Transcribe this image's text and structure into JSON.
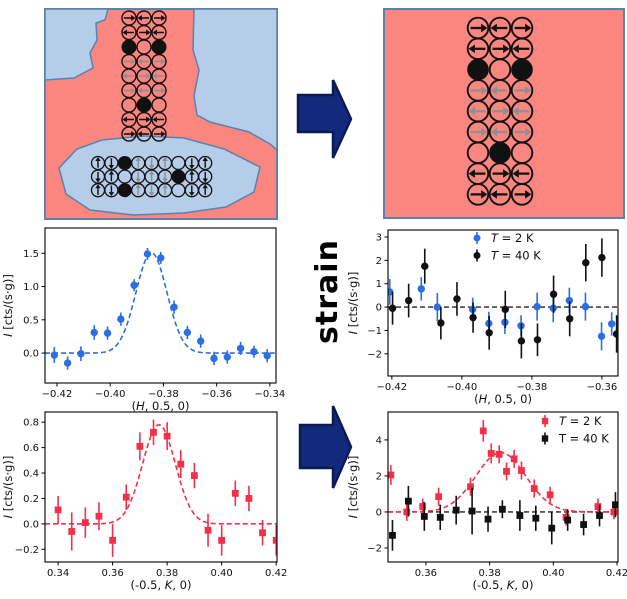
{
  "figure": {
    "strain_label": "strain"
  },
  "colors": {
    "salmon": "#fb8press",
    "salmon_fill": "#fb8680",
    "light_blue": "#b5cde8",
    "region_border": "#5a82ad",
    "arrow_navy": "#13297b",
    "arrow_navy_dark": "#0b1a52",
    "blue_marker": "#2b6fe2",
    "red_marker": "#f3304a",
    "black_marker": "#111111",
    "gray_arrow": "#8f8f8f",
    "spin_black": "#111111"
  },
  "diagrams": {
    "left": {
      "vertical_grid_pattern": [
        [
          "R",
          "L",
          "R"
        ],
        [
          "L",
          "R",
          "L"
        ],
        [
          "F",
          "O",
          "F"
        ],
        [
          "r",
          "l",
          "r"
        ],
        [
          "l",
          "r",
          "l"
        ],
        [
          "r",
          "l",
          "r"
        ],
        [
          "O",
          "F",
          "O"
        ],
        [
          "L",
          "R",
          "L"
        ],
        [
          "R",
          "L",
          "R"
        ]
      ],
      "horizontal_grid_pattern": [
        [
          "U",
          "D",
          "F",
          "u",
          "d",
          "u",
          "O",
          "D",
          "U"
        ],
        [
          "D",
          "U",
          "O",
          "d",
          "u",
          "d",
          "F",
          "U",
          "D"
        ],
        [
          "U",
          "D",
          "F",
          "u",
          "d",
          "u",
          "O",
          "D",
          "U"
        ]
      ]
    },
    "right": {
      "vertical_grid_pattern": [
        [
          "R",
          "L",
          "R"
        ],
        [
          "L",
          "R",
          "L"
        ],
        [
          "F",
          "O",
          "F"
        ],
        [
          "r",
          "l",
          "r"
        ],
        [
          "l",
          "r",
          "l"
        ],
        [
          "r",
          "l",
          "r"
        ],
        [
          "O",
          "F",
          "O"
        ],
        [
          "L",
          "R",
          "L"
        ],
        [
          "R",
          "L",
          "R"
        ]
      ]
    }
  },
  "chart_data": [
    {
      "id": "plot-mid-left",
      "type": "scatter",
      "xlabel": [
        {
          "t": "(",
          "i": false
        },
        {
          "t": "H",
          "i": true
        },
        {
          "t": ", 0.5, 0)",
          "i": false
        }
      ],
      "ylabel": [
        {
          "t": "I",
          "i": true
        },
        {
          "t": " [cts/(s·g)]",
          "i": false
        }
      ],
      "xlim": [
        -0.4245,
        -0.3377
      ],
      "ylim": [
        -0.45,
        1.88
      ],
      "xticks": [
        -0.42,
        -0.4,
        -0.38,
        -0.36,
        -0.34
      ],
      "xtick_labels": [
        "−0.42",
        "−0.40",
        "−0.38",
        "−0.36",
        "−0.34"
      ],
      "yticks": [
        0.0,
        0.5,
        1.0,
        1.5
      ],
      "ytick_labels": [
        "0.0",
        "0.5",
        "1.0",
        "1.5"
      ],
      "zero_line": false,
      "series": [
        {
          "name": "T = 2 K",
          "marker": "circle",
          "color_key": "blue_marker",
          "x": [
            -0.421,
            -0.416,
            -0.411,
            -0.406,
            -0.401,
            -0.396,
            -0.391,
            -0.386,
            -0.381,
            -0.376,
            -0.371,
            -0.366,
            -0.361,
            -0.356,
            -0.351,
            -0.346,
            -0.341
          ],
          "y": [
            -0.03,
            -0.15,
            -0.01,
            0.31,
            0.3,
            0.51,
            1.02,
            1.49,
            1.43,
            0.69,
            0.31,
            0.18,
            -0.08,
            -0.06,
            0.07,
            0.02,
            -0.04
          ],
          "yerr": [
            0.12,
            0.1,
            0.11,
            0.11,
            0.1,
            0.1,
            0.09,
            0.09,
            0.09,
            0.1,
            0.1,
            0.1,
            0.1,
            0.1,
            0.1,
            0.09,
            0.1
          ]
        }
      ],
      "fits": [
        {
          "color_key": "blue_marker",
          "gaussian": {
            "center": -0.3845,
            "amplitude": 1.51,
            "sigma": 0.0058,
            "baseline": 0.0
          }
        }
      ],
      "legend": null
    },
    {
      "id": "plot-mid-right",
      "type": "scatter",
      "xlabel": [
        {
          "t": "(",
          "i": false
        },
        {
          "t": "H",
          "i": true
        },
        {
          "t": ", 0.5, 0)",
          "i": false
        }
      ],
      "ylabel": [
        {
          "t": "I",
          "i": true
        },
        {
          "t": " [cts/(s·g)]",
          "i": false
        }
      ],
      "xlim": [
        -0.4211,
        -0.3554
      ],
      "ylim": [
        -2.95,
        3.3
      ],
      "xticks": [
        -0.42,
        -0.4,
        -0.38,
        -0.36
      ],
      "xtick_labels": [
        "−0.42",
        "−0.40",
        "−0.38",
        "−0.36"
      ],
      "yticks": [
        -2,
        -1,
        0,
        1,
        2,
        3
      ],
      "ytick_labels": [
        "−2",
        "−1",
        "0",
        "1",
        "2",
        "3"
      ],
      "zero_line": true,
      "series": [
        {
          "name": "T = 2 K",
          "marker": "circle",
          "color_key": "blue_marker",
          "x": [
            -0.4206,
            -0.4116,
            -0.407,
            -0.3969,
            -0.3923,
            -0.3877,
            -0.3831,
            -0.3785,
            -0.3739,
            -0.3693,
            -0.3647,
            -0.3601,
            -0.3572
          ],
          "y": [
            0.65,
            0.78,
            0.0,
            -0.1,
            -0.7,
            -0.65,
            -0.8,
            0.02,
            -0.05,
            0.28,
            0.02,
            -1.25,
            -0.72
          ],
          "yerr": [
            0.55,
            0.5,
            0.6,
            0.5,
            0.5,
            0.5,
            0.45,
            0.6,
            0.6,
            0.55,
            0.6,
            0.6,
            0.5
          ]
        },
        {
          "name": "T = 40 K",
          "marker": "circle",
          "color_key": "black_marker",
          "x": [
            -0.4198,
            -0.4152,
            -0.4106,
            -0.406,
            -0.4014,
            -0.3968,
            -0.3922,
            -0.3876,
            -0.383,
            -0.3784,
            -0.3738,
            -0.3692,
            -0.3646,
            -0.36,
            -0.3558
          ],
          "y": [
            -0.05,
            0.28,
            1.75,
            -0.68,
            0.35,
            -0.45,
            -1.1,
            -0.1,
            -1.45,
            -1.4,
            0.55,
            -0.5,
            1.9,
            2.12,
            -1.15
          ],
          "yerr": [
            0.7,
            0.72,
            0.75,
            0.7,
            0.72,
            0.65,
            0.72,
            0.8,
            0.75,
            0.7,
            0.8,
            0.75,
            0.8,
            0.82,
            0.8
          ]
        }
      ],
      "fits": [],
      "legend": {
        "entries": [
          {
            "marker": "circle",
            "color_key": "blue_marker",
            "label": [
              {
                "t": "T",
                "i": true
              },
              {
                "t": " = 2 K",
                "i": false
              }
            ]
          },
          {
            "marker": "circle",
            "color_key": "black_marker",
            "label": [
              {
                "t": "T",
                "i": true
              },
              {
                "t": " = 40 K",
                "i": false
              }
            ]
          }
        ]
      }
    },
    {
      "id": "plot-bot-left",
      "type": "scatter",
      "xlabel": [
        {
          "t": "(-0.5, ",
          "i": false
        },
        {
          "t": "K",
          "i": true
        },
        {
          "t": ", 0)",
          "i": false
        }
      ],
      "ylabel": [
        {
          "t": "I",
          "i": true
        },
        {
          "t": " [cts/(s·g)]",
          "i": false
        }
      ],
      "xlim": [
        0.3352,
        0.4203
      ],
      "ylim": [
        -0.3,
        0.88
      ],
      "xticks": [
        0.34,
        0.36,
        0.38,
        0.4,
        0.42
      ],
      "xtick_labels": [
        "0.34",
        "0.36",
        "0.38",
        "0.40",
        "0.42"
      ],
      "yticks": [
        -0.2,
        0.0,
        0.2,
        0.4,
        0.6,
        0.8
      ],
      "ytick_labels": [
        "−0.2",
        "0.0",
        "0.2",
        "0.4",
        "0.6",
        "0.8"
      ],
      "zero_line": false,
      "series": [
        {
          "name": "T = 2 K",
          "marker": "square",
          "color_key": "red_marker",
          "x": [
            0.34,
            0.345,
            0.35,
            0.355,
            0.36,
            0.365,
            0.37,
            0.375,
            0.38,
            0.385,
            0.39,
            0.395,
            0.4,
            0.405,
            0.41,
            0.415,
            0.42
          ],
          "y": [
            0.11,
            -0.06,
            0.01,
            0.06,
            -0.13,
            0.21,
            0.61,
            0.72,
            0.69,
            0.47,
            0.38,
            -0.05,
            -0.13,
            0.24,
            0.2,
            -0.07,
            -0.13
          ],
          "yerr": [
            0.11,
            0.15,
            0.12,
            0.11,
            0.13,
            0.1,
            0.11,
            0.1,
            0.11,
            0.11,
            0.1,
            0.13,
            0.12,
            0.1,
            0.1,
            0.1,
            0.12
          ]
        }
      ],
      "fits": [
        {
          "color_key": "red_marker",
          "gaussian": {
            "center": 0.377,
            "amplitude": 0.78,
            "sigma": 0.006,
            "baseline": 0.0
          }
        }
      ],
      "legend": null
    },
    {
      "id": "plot-bot-right",
      "type": "scatter",
      "xlabel": [
        {
          "t": "(-0.5, ",
          "i": false
        },
        {
          "t": "K",
          "i": true
        },
        {
          "t": ", 0)",
          "i": false
        }
      ],
      "ylabel": [
        {
          "t": "I",
          "i": true
        },
        {
          "t": " [cts/(s·g)]",
          "i": false
        }
      ],
      "xlim": [
        0.3481,
        0.4203
      ],
      "ylim": [
        -2.78,
        5.55
      ],
      "xticks": [
        0.36,
        0.38,
        0.4,
        0.42
      ],
      "xtick_labels": [
        "0.36",
        "0.38",
        "0.40",
        "0.42"
      ],
      "yticks": [
        -2,
        0,
        2,
        4
      ],
      "ytick_labels": [
        "−2",
        "0",
        "2",
        "4"
      ],
      "zero_line": true,
      "series": [
        {
          "name": "T = 2 K",
          "marker": "square",
          "color_key": "red_marker",
          "x": [
            0.349,
            0.354,
            0.359,
            0.364,
            0.374,
            0.378,
            0.3805,
            0.383,
            0.3853,
            0.3877,
            0.39,
            0.394,
            0.399,
            0.404,
            0.414,
            0.419
          ],
          "y": [
            2.05,
            0.0,
            0.3,
            0.85,
            1.4,
            4.5,
            3.25,
            3.2,
            2.25,
            2.95,
            2.3,
            1.3,
            0.95,
            -0.3,
            0.3,
            0.0
          ],
          "yerr": [
            0.55,
            0.5,
            0.45,
            0.5,
            0.5,
            0.6,
            0.55,
            0.5,
            0.5,
            0.5,
            0.5,
            0.5,
            0.45,
            0.45,
            0.45,
            0.4
          ]
        },
        {
          "name": "T = 40 K",
          "marker": "square",
          "color_key": "black_marker",
          "x": [
            0.3495,
            0.3545,
            0.3595,
            0.3645,
            0.3695,
            0.3745,
            0.3795,
            0.384,
            0.3895,
            0.3945,
            0.3995,
            0.4045,
            0.4095,
            0.4145,
            0.4195
          ],
          "y": [
            -1.3,
            0.6,
            -0.25,
            -0.3,
            0.1,
            0.05,
            -0.4,
            0.15,
            -0.2,
            -0.35,
            -0.9,
            -0.45,
            -0.7,
            -0.2,
            0.4
          ],
          "yerr": [
            0.85,
            0.85,
            0.8,
            0.7,
            0.8,
            1.3,
            0.7,
            0.5,
            0.85,
            0.7,
            0.9,
            0.6,
            0.6,
            0.6,
            0.7
          ]
        }
      ],
      "fits": [
        {
          "color_key": "red_marker",
          "gaussian": {
            "center": 0.3835,
            "amplitude": 3.3,
            "sigma": 0.0078,
            "baseline": 0.0
          }
        }
      ],
      "legend": {
        "entries": [
          {
            "marker": "square",
            "color_key": "red_marker",
            "label": [
              {
                "t": "T",
                "i": true
              },
              {
                "t": " = 2 K",
                "i": false
              }
            ]
          },
          {
            "marker": "square",
            "color_key": "black_marker",
            "label": [
              {
                "t": "T = 40 K",
                "i": false
              }
            ]
          }
        ]
      }
    }
  ]
}
